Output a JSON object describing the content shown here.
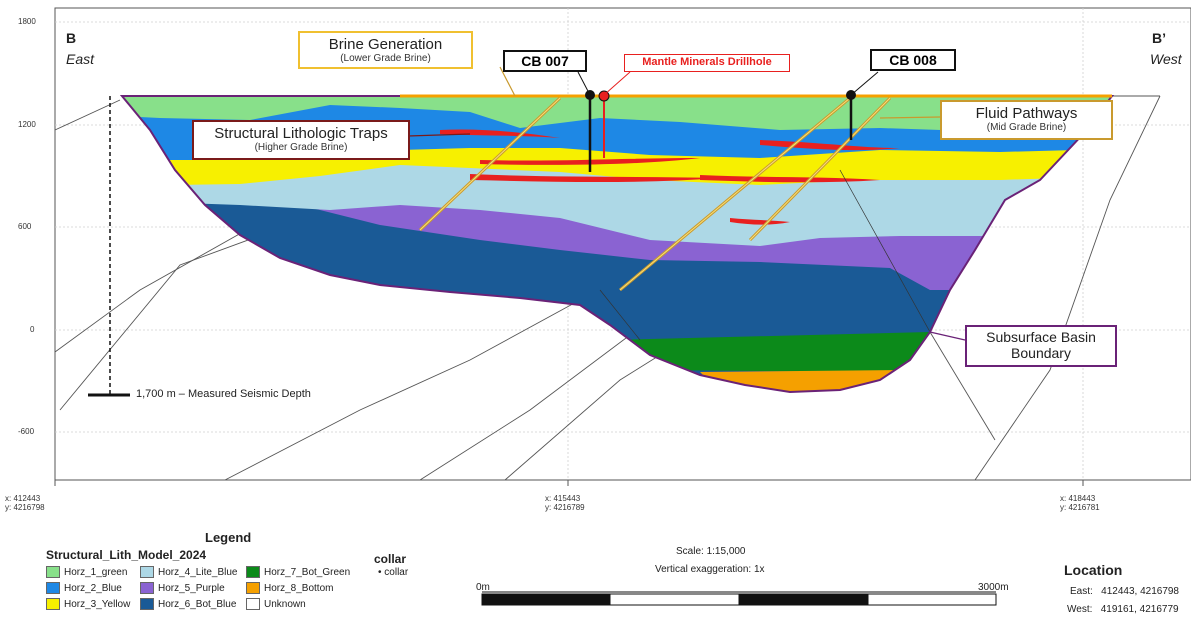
{
  "section": {
    "left_letter": "B",
    "left_dir": "East",
    "right_letter": "B’",
    "right_dir": "West"
  },
  "y_ticks": [
    "1800",
    "1200",
    "600",
    "0",
    "-600"
  ],
  "x_ticks": [
    {
      "x": "x: 412443",
      "y": "y: 4216798"
    },
    {
      "x": "x: 415443",
      "y": "y: 4216789"
    },
    {
      "x": "x: 418443",
      "y": "y: 4216781"
    }
  ],
  "callouts": {
    "brine_generation": {
      "title": "Brine Generation",
      "sub": "(Lower Grade Brine)"
    },
    "traps": {
      "title": "Structural Lithologic Traps",
      "sub": "(Higher Grade Brine)"
    },
    "fluid_pathways": {
      "title": "Fluid Pathways",
      "sub": "(Mid Grade Brine)"
    },
    "basin_boundary": {
      "line1": "Subsurface Basin",
      "line2": "Boundary"
    },
    "seismic_depth": "1,700 m – Measured Seismic Depth"
  },
  "drillholes": {
    "cb007": "CB 007",
    "cb008": "CB 008",
    "mantle": "Mantle Minerals Drillhole"
  },
  "legend": {
    "title": "Legend",
    "model": "Structural_Lith_Model_2024",
    "items": [
      {
        "label": "Horz_1_green",
        "color": "#88e08a"
      },
      {
        "label": "Horz_2_Blue",
        "color": "#1e88e5"
      },
      {
        "label": "Horz_3_Yellow",
        "color": "#f7f000"
      },
      {
        "label": "Horz_4_Lite_Blue",
        "color": "#add8e6"
      },
      {
        "label": "Horz_5_Purple",
        "color": "#8a63d2"
      },
      {
        "label": "Horz_6_Bot_Blue",
        "color": "#1a5a96"
      },
      {
        "label": "Horz_7_Bot_Green",
        "color": "#0c8a1a"
      },
      {
        "label": "Horz_8_Bottom",
        "color": "#f5a000"
      },
      {
        "label": "Unknown",
        "color": "#ffffff"
      }
    ],
    "collar_title": "collar",
    "collar_item": "collar"
  },
  "scale": {
    "text": "Scale: 1:15,000",
    "exaggeration": "Vertical exaggeration: 1x",
    "start": "0m",
    "end": "3000m"
  },
  "location": {
    "title": "Location",
    "east_label": "East:",
    "east_value": "412443, 4216798",
    "west_label": "West:",
    "west_value": "419161, 4216779"
  }
}
